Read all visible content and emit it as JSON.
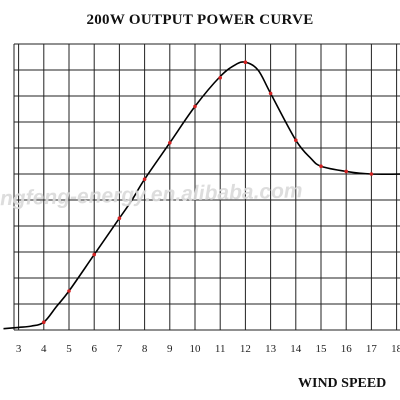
{
  "chart_data": {
    "type": "line",
    "title": "200W OUTPUT POWER CURVE",
    "xlabel": "WIND SPEED",
    "ylabel": "",
    "watermark": "ngfeng-energy.en.alibaba.com",
    "x_ticks": [
      3,
      4,
      5,
      6,
      7,
      8,
      9,
      10,
      11,
      12,
      13,
      14,
      15,
      16,
      17,
      18
    ],
    "x_tick_labels": [
      "3",
      "4",
      "5",
      "6",
      "7",
      "8",
      "9",
      "10",
      "11",
      "12",
      "13",
      "14",
      "15",
      "16",
      "17",
      "18"
    ],
    "xlim": [
      2.4,
      18.5
    ],
    "ylim": [
      0,
      11
    ],
    "grid": true,
    "legend": "none",
    "series": [
      {
        "curve": [
          [
            2.4,
            0.05
          ],
          [
            3,
            0.1
          ],
          [
            3.5,
            0.15
          ],
          [
            4,
            0.3
          ],
          [
            4.5,
            0.9
          ],
          [
            5,
            1.5
          ],
          [
            6,
            2.9
          ],
          [
            7,
            4.3
          ],
          [
            7.5,
            5.0
          ],
          [
            8,
            5.8
          ],
          [
            9,
            7.2
          ],
          [
            10,
            8.6
          ],
          [
            11,
            9.75
          ],
          [
            11.6,
            10.2
          ],
          [
            12,
            10.3
          ],
          [
            12.5,
            10.0
          ],
          [
            13,
            9.1
          ],
          [
            14,
            7.3
          ],
          [
            14.6,
            6.6
          ],
          [
            15,
            6.3
          ],
          [
            16,
            6.1
          ],
          [
            17,
            6.0
          ],
          [
            18.5,
            6.0
          ]
        ],
        "markers": [
          [
            4,
            0.3
          ],
          [
            5,
            1.5
          ],
          [
            6,
            2.9
          ],
          [
            7,
            4.3
          ],
          [
            8,
            5.8
          ],
          [
            9,
            7.2
          ],
          [
            10,
            8.6
          ],
          [
            11,
            9.7
          ],
          [
            12,
            10.3
          ],
          [
            13,
            9.1
          ],
          [
            14,
            7.3
          ],
          [
            15,
            6.3
          ],
          [
            16,
            6.1
          ],
          [
            17,
            6.0
          ]
        ],
        "line_color": "#000000",
        "marker_color": "#d32222"
      }
    ]
  }
}
